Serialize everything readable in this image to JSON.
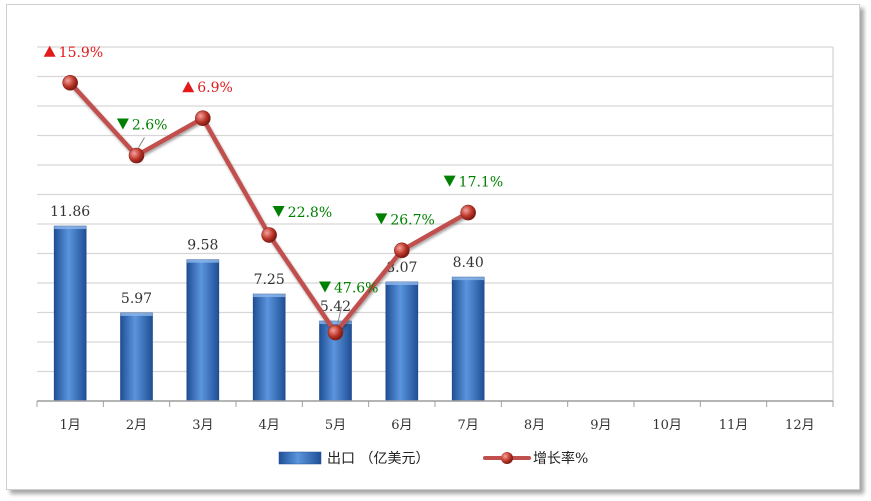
{
  "chart_data": {
    "type": "bar",
    "categories": [
      "1月",
      "2月",
      "3月",
      "4月",
      "5月",
      "6月",
      "7月",
      "8月",
      "9月",
      "10月",
      "11月",
      "12月"
    ],
    "series": [
      {
        "name": "出口（亿美元）",
        "type": "bar",
        "values": [
          11.86,
          5.97,
          9.58,
          7.25,
          5.42,
          8.07,
          8.4,
          null,
          null,
          null,
          null,
          null
        ],
        "color": "#3b78c7"
      },
      {
        "name": "增长率%",
        "type": "line",
        "values": [
          15.9,
          -2.6,
          6.9,
          -22.8,
          -47.6,
          -26.7,
          -17.1,
          null,
          null,
          null,
          null,
          null
        ],
        "color": "#c0504d"
      }
    ],
    "growth_labels": [
      {
        "text": "15.9%",
        "dir": "up"
      },
      {
        "text": "2.6%",
        "dir": "down"
      },
      {
        "text": "6.9%",
        "dir": "up"
      },
      {
        "text": "22.8%",
        "dir": "down"
      },
      {
        "text": "47.6%",
        "dir": "down"
      },
      {
        "text": "26.7%",
        "dir": "down"
      },
      {
        "text": "17.1%",
        "dir": "down"
      }
    ],
    "bar_labels": [
      "11.86",
      "5.97",
      "9.58",
      "7.25",
      "5.42",
      "8.07",
      "8.40"
    ],
    "ylim_bar": [
      0,
      24
    ],
    "ylim_line": [
      -65,
      25
    ],
    "grid": true,
    "legend_position": "bottom",
    "up_color": "#e31a1c",
    "down_color": "#008000"
  },
  "legend": {
    "bar_label": "出口 （亿美元）",
    "line_label": "增长率%"
  }
}
